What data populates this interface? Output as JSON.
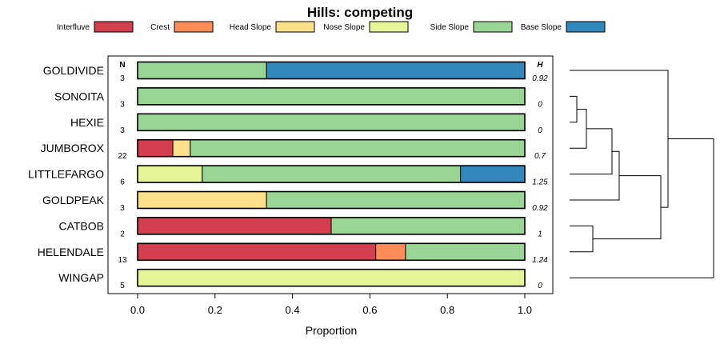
{
  "chart_data": {
    "type": "bar",
    "stacked": true,
    "orientation": "horizontal",
    "title": "Hills: competing",
    "xlabel": "Proportion",
    "xlim": [
      0,
      1
    ],
    "xticks": [
      "0.0",
      "0.2",
      "0.4",
      "0.6",
      "0.8",
      "1.0"
    ],
    "n_header": "N",
    "h_header": "H",
    "legend": [
      {
        "name": "Interfluve",
        "color": "#D53E4F"
      },
      {
        "name": "Crest",
        "color": "#FC8D59"
      },
      {
        "name": "Head Slope",
        "color": "#FEE08B"
      },
      {
        "name": "Nose Slope",
        "color": "#E6F598"
      },
      {
        "name": "Side Slope",
        "color": "#99D594"
      },
      {
        "name": "Base Slope",
        "color": "#3288BD"
      }
    ],
    "rows": [
      {
        "label": "GOLDIVIDE",
        "n": "3",
        "h": "0.92",
        "segments": [
          0,
          0,
          0,
          0,
          0.333,
          0.667
        ]
      },
      {
        "label": "SONOITA",
        "n": "3",
        "h": "0",
        "segments": [
          0,
          0,
          0,
          0,
          1,
          0
        ]
      },
      {
        "label": "HEXIE",
        "n": "3",
        "h": "0",
        "segments": [
          0,
          0,
          0,
          0,
          1,
          0
        ]
      },
      {
        "label": "JUMBOROX",
        "n": "22",
        "h": "0.7",
        "segments": [
          0.091,
          0,
          0.045,
          0,
          0.864,
          0
        ]
      },
      {
        "label": "LITTLEFARGO",
        "n": "6",
        "h": "1.25",
        "segments": [
          0,
          0,
          0,
          0.167,
          0.667,
          0.166
        ]
      },
      {
        "label": "GOLDPEAK",
        "n": "3",
        "h": "0.92",
        "segments": [
          0,
          0,
          0.333,
          0,
          0.667,
          0
        ]
      },
      {
        "label": "CATBOB",
        "n": "2",
        "h": "1",
        "segments": [
          0.5,
          0,
          0,
          0,
          0.5,
          0
        ]
      },
      {
        "label": "HELENDALE",
        "n": "13",
        "h": "1.24",
        "segments": [
          0.615,
          0.077,
          0,
          0,
          0.308,
          0
        ]
      },
      {
        "label": "WINGAP",
        "n": "5",
        "h": "0",
        "segments": [
          0,
          0,
          0,
          1,
          0,
          0
        ]
      }
    ]
  }
}
